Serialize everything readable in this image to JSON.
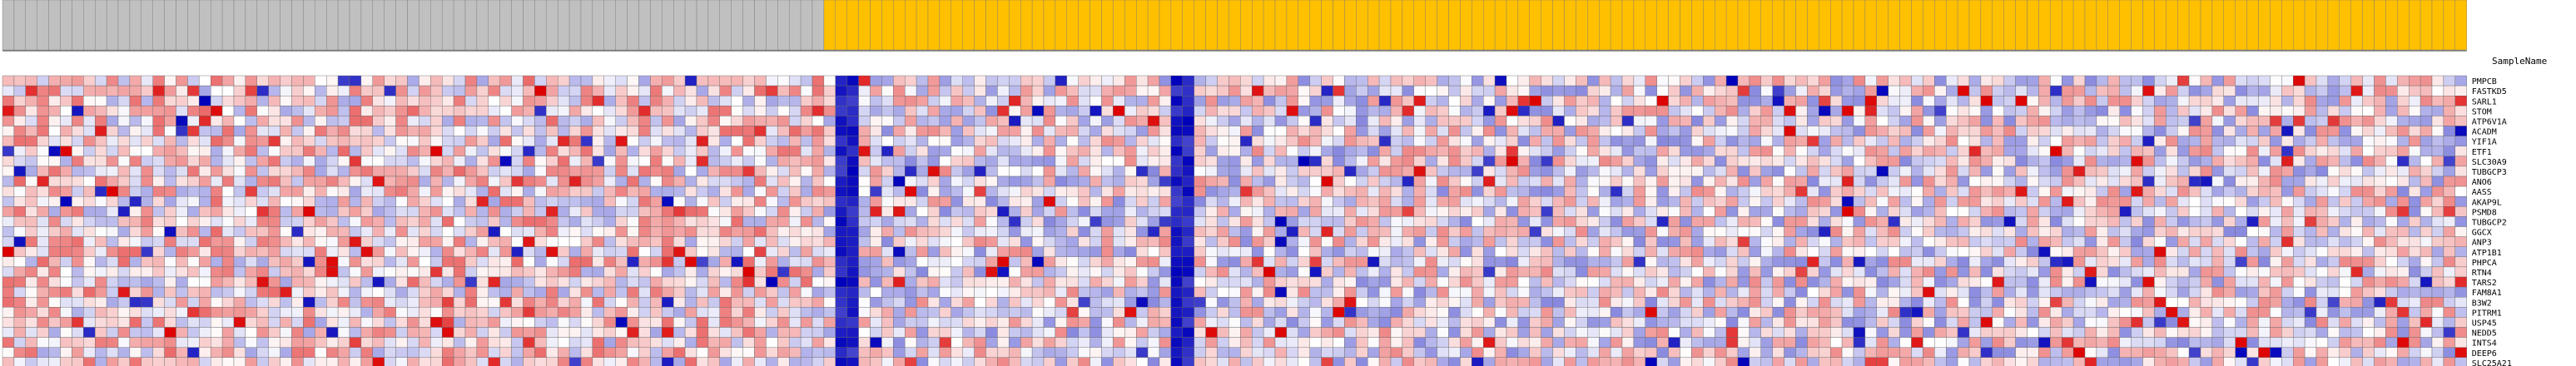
{
  "chart_data": {
    "type": "heatmap",
    "header_label": "SampleName",
    "groups": [
      {
        "name": "",
        "color": "#c0c0c0",
        "count": 71
      },
      {
        "name": "",
        "color": "#ffc000",
        "count": 142
      }
    ],
    "genes": [
      "PMPCB",
      "FASTKD5",
      "SARL1",
      "STOM",
      "ATP6V1A",
      "ACADM",
      "YIF1A",
      "ETF1",
      "SLC30A9",
      "TUBGCP3",
      "ANO6",
      "AASS",
      "AKAP9L",
      "PSMD8",
      "TUBGCP2",
      "GGCX",
      "ANP3",
      "ATP1B1",
      "PHPCA",
      "RTN4",
      "TARS2",
      "FAM8A1",
      "B3W2",
      "PITRM1",
      "USP45",
      "NEDD5",
      "INTS4",
      "DEEP6",
      "SLC25A21"
    ],
    "color_scale": {
      "low": "#0000bb",
      "mid": "#ffffff",
      "high": "#dd0000"
    },
    "value_range": [
      -3,
      3
    ]
  }
}
